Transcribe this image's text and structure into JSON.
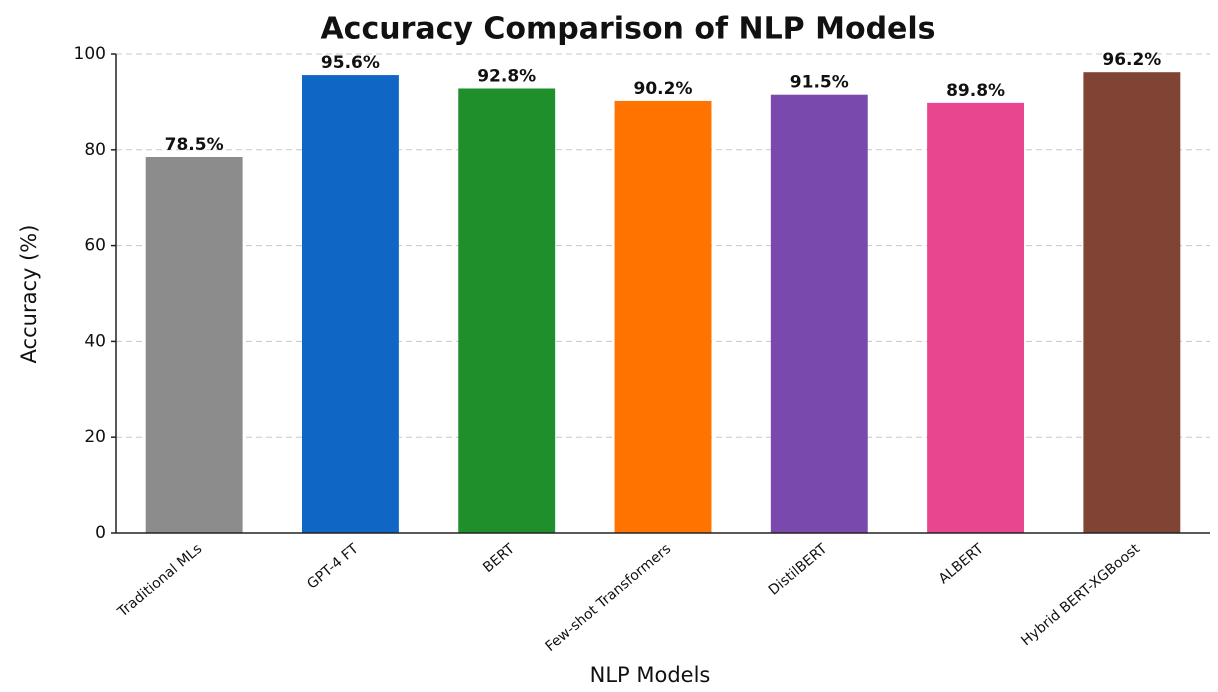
{
  "chart_data": {
    "type": "bar",
    "title": "Accuracy Comparison of NLP Models",
    "xlabel": "NLP Models",
    "ylabel": "Accuracy (%)",
    "categories": [
      "Traditional MLs",
      "GPT-4 FT",
      "BERT",
      "Few-shot Transformers",
      "DistilBERT",
      "ALBERT",
      "Hybrid BERT-XGBoost"
    ],
    "values": [
      78.5,
      95.6,
      92.8,
      90.2,
      91.5,
      89.8,
      96.2
    ],
    "value_labels": [
      "78.5%",
      "95.6%",
      "92.8%",
      "90.2%",
      "91.5%",
      "89.8%",
      "96.2%"
    ],
    "colors": [
      "#8c8c8c",
      "#0f66c4",
      "#1e8f2a",
      "#ff7300",
      "#7a49ad",
      "#e8478f",
      "#7f4433"
    ],
    "ylim": [
      0,
      100
    ],
    "yticks": [
      0,
      20,
      40,
      60,
      80,
      100
    ],
    "grid": true
  }
}
